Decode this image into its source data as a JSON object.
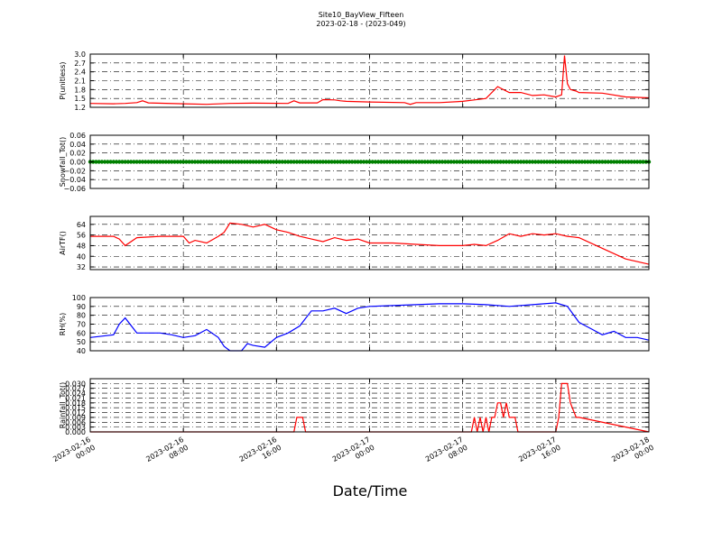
{
  "figure": {
    "title": "Site10_BayView_Fifteen",
    "subtitle": "2023-02-18 - (2023-049)",
    "xlabel": "Date/Time",
    "x_tick_labels": [
      [
        "2023-02-16",
        "00:00"
      ],
      [
        "2023-02-16",
        "08:00"
      ],
      [
        "2023-02-16",
        "16:00"
      ],
      [
        "2023-02-17",
        "00:00"
      ],
      [
        "2023-02-17",
        "08:00"
      ],
      [
        "2023-02-17",
        "16:00"
      ],
      [
        "2023-02-18",
        "00:00"
      ]
    ],
    "x_tick_hours": [
      0,
      8,
      16,
      24,
      32,
      40,
      48
    ]
  },
  "chart_data": [
    {
      "type": "line",
      "ylabel": "P(unitless)",
      "color": "#ff0000",
      "ylim": [
        1.2,
        3.0
      ],
      "yticks": [
        1.2,
        1.5,
        1.8,
        2.1,
        2.4,
        2.7,
        3.0
      ],
      "tick_labels": [
        "1.2",
        "1.5",
        "1.8",
        "2.1",
        "2.4",
        "2.7",
        "3.0"
      ],
      "grid": true,
      "x": [
        "2023-02-16 00:00",
        "2023-02-16 02:00",
        "2023-02-16 03:00",
        "2023-02-16 04:00",
        "2023-02-16 04:30",
        "2023-02-16 05:00",
        "2023-02-16 08:00",
        "2023-02-16 10:00",
        "2023-02-16 12:00",
        "2023-02-16 14:00",
        "2023-02-16 17:00",
        "2023-02-16 17:30",
        "2023-02-16 18:00",
        "2023-02-16 19:30",
        "2023-02-16 20:00",
        "2023-02-16 21:00",
        "2023-02-16 21:30",
        "2023-02-16 22:00",
        "2023-02-17 00:00",
        "2023-02-17 03:00",
        "2023-02-17 03:30",
        "2023-02-17 04:00",
        "2023-02-17 05:00",
        "2023-02-17 06:00",
        "2023-02-17 08:00",
        "2023-02-17 09:00",
        "2023-02-17 10:00",
        "2023-02-17 11:00",
        "2023-02-17 12:00",
        "2023-02-17 13:00",
        "2023-02-17 14:00",
        "2023-02-17 15:00",
        "2023-02-17 16:00",
        "2023-02-17 16:30",
        "2023-02-17 16:45",
        "2023-02-17 17:00",
        "2023-02-17 17:15",
        "2023-02-17 17:45",
        "2023-02-17 18:00",
        "2023-02-17 20:00",
        "2023-02-17 22:00",
        "2023-02-18 00:00"
      ],
      "y": [
        1.33,
        1.32,
        1.33,
        1.36,
        1.42,
        1.35,
        1.32,
        1.3,
        1.33,
        1.34,
        1.33,
        1.42,
        1.35,
        1.35,
        1.46,
        1.45,
        1.42,
        1.4,
        1.38,
        1.36,
        1.3,
        1.36,
        1.36,
        1.36,
        1.4,
        1.45,
        1.5,
        1.9,
        1.7,
        1.7,
        1.6,
        1.62,
        1.55,
        1.62,
        2.95,
        2.0,
        1.8,
        1.75,
        1.7,
        1.68,
        1.55,
        1.52
      ]
    },
    {
      "type": "scatter",
      "ylabel": "Snowfall_Tot()",
      "color": "#008000",
      "ylim": [
        -0.06,
        0.06
      ],
      "yticks": [
        -0.06,
        -0.04,
        -0.02,
        0.0,
        0.02,
        0.04,
        0.06
      ],
      "tick_labels": [
        "−0.06",
        "−0.04",
        "−0.02",
        "0.00",
        "0.02",
        "0.04",
        "0.06"
      ],
      "grid": true,
      "x_range": [
        "2023-02-16 00:00",
        "2023-02-18 00:00"
      ],
      "constant_value": 0.0
    },
    {
      "type": "line",
      "ylabel": "AirTF()",
      "color": "#ff0000",
      "ylim": [
        30,
        70
      ],
      "yticks": [
        32,
        40,
        48,
        56,
        64
      ],
      "tick_labels": [
        "32",
        "40",
        "48",
        "56",
        "64"
      ],
      "grid": true,
      "x": [
        "2023-02-16 00:00",
        "2023-02-16 02:00",
        "2023-02-16 02:30",
        "2023-02-16 03:00",
        "2023-02-16 04:00",
        "2023-02-16 06:00",
        "2023-02-16 08:00",
        "2023-02-16 08:30",
        "2023-02-16 09:00",
        "2023-02-16 10:00",
        "2023-02-16 11:00",
        "2023-02-16 11:30",
        "2023-02-16 12:00",
        "2023-02-16 13:00",
        "2023-02-16 14:00",
        "2023-02-16 14:30",
        "2023-02-16 15:00",
        "2023-02-16 16:00",
        "2023-02-16 17:00",
        "2023-02-16 18:00",
        "2023-02-16 19:00",
        "2023-02-16 20:00",
        "2023-02-16 21:00",
        "2023-02-16 22:00",
        "2023-02-16 23:00",
        "2023-02-17 00:00",
        "2023-02-17 02:00",
        "2023-02-17 04:00",
        "2023-02-17 06:00",
        "2023-02-17 08:00",
        "2023-02-17 09:00",
        "2023-02-17 10:00",
        "2023-02-17 11:00",
        "2023-02-17 12:00",
        "2023-02-17 13:00",
        "2023-02-17 14:00",
        "2023-02-17 15:00",
        "2023-02-17 16:00",
        "2023-02-17 17:00",
        "2023-02-17 18:00",
        "2023-02-17 20:00",
        "2023-02-17 22:00",
        "2023-02-18 00:00"
      ],
      "y": [
        55,
        55,
        53,
        48,
        54,
        55,
        55,
        50,
        52,
        50,
        55,
        58,
        65,
        64,
        62,
        63,
        64,
        60,
        58,
        55,
        53,
        51,
        54,
        52,
        53,
        50,
        50,
        49,
        48,
        48,
        49,
        48,
        52,
        57,
        55,
        57,
        56,
        57,
        55,
        54,
        46,
        38,
        34
      ]
    },
    {
      "type": "line",
      "ylabel": "RH(%)",
      "color": "#0000ff",
      "ylim": [
        40,
        100
      ],
      "yticks": [
        40,
        50,
        60,
        70,
        80,
        90,
        100
      ],
      "tick_labels": [
        "40",
        "50",
        "60",
        "70",
        "80",
        "90",
        "100"
      ],
      "grid": true,
      "x": [
        "2023-02-16 00:00",
        "2023-02-16 02:00",
        "2023-02-16 02:30",
        "2023-02-16 03:00",
        "2023-02-16 04:00",
        "2023-02-16 06:00",
        "2023-02-16 07:00",
        "2023-02-16 08:00",
        "2023-02-16 09:00",
        "2023-02-16 10:00",
        "2023-02-16 11:00",
        "2023-02-16 11:30",
        "2023-02-16 12:00",
        "2023-02-16 13:00",
        "2023-02-16 13:30",
        "2023-02-16 14:00",
        "2023-02-16 15:00",
        "2023-02-16 16:00",
        "2023-02-16 17:00",
        "2023-02-16 18:00",
        "2023-02-16 19:00",
        "2023-02-16 20:00",
        "2023-02-16 21:00",
        "2023-02-16 22:00",
        "2023-02-16 23:00",
        "2023-02-17 00:00",
        "2023-02-17 02:00",
        "2023-02-17 04:00",
        "2023-02-17 06:00",
        "2023-02-17 08:00",
        "2023-02-17 10:00",
        "2023-02-17 12:00",
        "2023-02-17 14:00",
        "2023-02-17 16:00",
        "2023-02-17 17:00",
        "2023-02-17 18:00",
        "2023-02-17 19:00",
        "2023-02-17 20:00",
        "2023-02-17 21:00",
        "2023-02-17 22:00",
        "2023-02-17 23:00",
        "2023-02-18 00:00"
      ],
      "y": [
        55,
        58,
        70,
        77,
        60,
        60,
        58,
        55,
        57,
        64,
        55,
        45,
        40,
        40,
        48,
        46,
        44,
        55,
        60,
        68,
        85,
        85,
        88,
        82,
        88,
        90,
        91,
        92,
        93,
        93,
        92,
        90,
        92,
        94,
        90,
        72,
        65,
        58,
        62,
        55,
        55,
        52
      ]
    },
    {
      "type": "line",
      "ylabel": "Rainfall_Tot()",
      "color": "#ff0000",
      "ylim": [
        0.0,
        0.033
      ],
      "yticks": [
        0.0,
        0.003,
        0.006,
        0.009,
        0.012,
        0.015,
        0.018,
        0.021,
        0.024,
        0.027,
        0.03
      ],
      "tick_labels": [
        "0.000",
        "0.003",
        "0.006",
        "0.009",
        "0.012",
        "0.015",
        "0.018",
        "0.021",
        "0.024",
        "0.027",
        "0.030"
      ],
      "grid": true,
      "x": [
        "2023-02-16 00:00",
        "2023-02-16 17:30",
        "2023-02-16 17:45",
        "2023-02-16 18:15",
        "2023-02-16 18:30",
        "2023-02-17 01:15",
        "2023-02-17 01:30",
        "2023-02-17 01:45",
        "2023-02-17 02:00",
        "2023-02-17 02:15",
        "2023-02-17 02:30",
        "2023-02-17 02:45",
        "2023-02-17 03:00",
        "2023-02-17 03:15",
        "2023-02-17 03:30",
        "2023-02-17 03:45",
        "2023-02-17 04:00",
        "2023-02-17 04:15",
        "2023-02-17 05:15",
        "2023-02-17 05:30",
        "2023-02-17 08:45",
        "2023-02-17 09:00",
        "2023-02-17 09:15",
        "2023-02-17 09:30",
        "2023-02-17 09:45",
        "2023-02-17 10:00",
        "2023-02-17 10:15",
        "2023-02-17 10:30",
        "2023-02-17 10:45",
        "2023-02-17 11:00",
        "2023-02-17 11:15",
        "2023-02-17 11:30",
        "2023-02-17 11:45",
        "2023-02-17 12:00",
        "2023-02-17 12:15",
        "2023-02-17 12:30",
        "2023-02-17 12:45",
        "2023-02-17 13:00",
        "2023-02-17 13:15",
        "2023-02-17 13:30",
        "2023-02-17 13:45",
        "2023-02-17 14:00",
        "2023-02-17 16:00",
        "2023-02-17 16:15",
        "2023-02-17 16:30",
        "2023-02-17 17:00",
        "2023-02-17 17:15",
        "2023-02-17 17:45",
        "2023-02-17 18:00",
        "2023-02-18 00:00"
      ],
      "y": [
        0.0,
        0.0,
        0.009,
        0.009,
        0.0,
        0.0,
        0.0,
        0.0,
        0.0,
        0.0,
        0.0,
        0.0,
        0.0,
        0.0,
        0.0,
        0.0,
        0.0,
        0.0,
        0.0,
        0.0,
        0.0,
        0.009,
        0.0,
        0.009,
        0.0,
        0.009,
        0.0,
        0.009,
        0.009,
        0.018,
        0.018,
        0.009,
        0.018,
        0.009,
        0.009,
        0.009,
        0.0,
        0.0,
        0.0,
        0.0,
        0.0,
        0.0,
        0.0,
        0.009,
        0.03,
        0.03,
        0.018,
        0.009,
        0.009,
        0.0
      ]
    }
  ]
}
